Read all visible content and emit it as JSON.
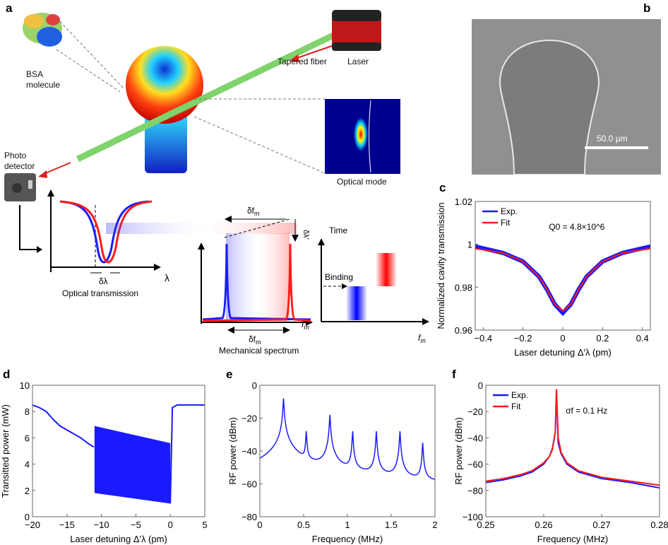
{
  "panel_labels": [
    "a",
    "b",
    "c",
    "d",
    "e",
    "f"
  ],
  "diagram": {
    "bsa_label_1": "BSA",
    "bsa_label_2": "molecule",
    "tapered_fiber": "Tapered fiber",
    "laser": "Laser",
    "photo_detector_1": "Photo",
    "photo_detector_2": "detector",
    "optical_mode": "Optical mode",
    "optical_transmission": "Optical transmission",
    "lambda": "λ",
    "delta_lambda": "δλ",
    "delta_lambda_prime": "δλ′",
    "delta_fm_top": "δf",
    "delta_fm_bottom": "δf",
    "fm_sub": "m",
    "fm_axis": "f",
    "mechanical_spectrum": "Mechanical spectrum",
    "time": "Time",
    "binding": "Binding",
    "colors": {
      "blue": "#1a1aff",
      "red": "#ff1a1a",
      "fiber": "#7ed36b"
    }
  },
  "sem": {
    "scale_bar": "50.0 µm"
  },
  "chart_data": [
    {
      "id": "c",
      "type": "line",
      "xlabel": "Laser detuning Δ′λ (pm)",
      "ylabel": "Normalized cavity transmission",
      "xlim": [
        -0.44,
        0.44
      ],
      "ylim": [
        0.96,
        1.02
      ],
      "xticks": [
        -0.4,
        -0.2,
        0,
        0.2,
        0.4
      ],
      "xtick_labels": [
        "−0.4",
        "−0.2",
        "0",
        "0.2",
        "0.4"
      ],
      "yticks": [
        0.96,
        0.98,
        1,
        1.02
      ],
      "ytick_labels": [
        "0.96",
        "0.98",
        "1",
        "1.02"
      ],
      "legend": "top-left",
      "annotation": "Q0 = 4.8×10^6",
      "series": [
        {
          "name": "Exp.",
          "color": "#1a1aff",
          "x": [
            -0.44,
            -0.3,
            -0.2,
            -0.12,
            -0.08,
            -0.04,
            0,
            0.04,
            0.08,
            0.12,
            0.2,
            0.3,
            0.44
          ],
          "y": [
            0.999,
            0.996,
            0.992,
            0.985,
            0.979,
            0.972,
            0.968,
            0.972,
            0.979,
            0.985,
            0.992,
            0.996,
            0.999
          ]
        },
        {
          "name": "Fit",
          "color": "#ff1a1a",
          "x": [
            -0.44,
            -0.3,
            -0.2,
            -0.12,
            -0.08,
            -0.04,
            0,
            0.04,
            0.08,
            0.12,
            0.2,
            0.3,
            0.44
          ],
          "y": [
            0.998,
            0.996,
            0.992,
            0.985,
            0.979,
            0.972,
            0.969,
            0.972,
            0.979,
            0.985,
            0.992,
            0.996,
            0.998
          ]
        }
      ]
    },
    {
      "id": "d",
      "type": "line",
      "xlabel": "Laser detuning Δ′λ (pm)",
      "ylabel": "Transitted power (mW)",
      "xlim": [
        -20,
        5
      ],
      "ylim": [
        0,
        10
      ],
      "xticks": [
        -20,
        -15,
        -10,
        -5,
        0,
        5
      ],
      "xtick_labels": [
        "−20",
        "−15",
        "−10",
        "−5",
        "0",
        "5"
      ],
      "yticks": [
        0,
        2,
        4,
        6,
        8,
        10
      ],
      "ytick_labels": [
        "0",
        "2",
        "4",
        "6",
        "8",
        "10"
      ],
      "series": [
        {
          "name": "",
          "color": "#1a1aff",
          "x": [
            -20,
            -19,
            -18,
            -17,
            -16,
            -15,
            -14,
            -13,
            -12,
            -11.1
          ],
          "y": [
            8.5,
            8.3,
            8.0,
            7.4,
            6.9,
            6.6,
            6.3,
            6.0,
            5.6,
            5.3
          ]
        },
        {
          "name": "",
          "color": "#1a1aff",
          "x": [
            0,
            0.3,
            1,
            5
          ],
          "y": [
            1.0,
            8.3,
            8.5,
            8.5
          ]
        }
      ],
      "band": {
        "color": "#1a1aff",
        "x": [
          -11,
          0
        ],
        "upper": [
          6.9,
          5.6
        ],
        "lower": [
          1.8,
          1.0
        ]
      }
    },
    {
      "id": "e",
      "type": "line",
      "xlabel": "Frequency (MHz)",
      "ylabel": "RF power (dBm)",
      "xlim": [
        0,
        2
      ],
      "ylim": [
        -80,
        0
      ],
      "xticks": [
        0,
        0.5,
        1,
        1.5,
        2
      ],
      "xtick_labels": [
        "0",
        "0.5",
        "1",
        "1.5",
        "2"
      ],
      "yticks": [
        -80,
        -60,
        -40,
        -20,
        0
      ],
      "ytick_labels": [
        "−80",
        "−60",
        "−40",
        "−20",
        "0"
      ],
      "baseline": {
        "x": [
          0,
          2
        ],
        "y": [
          -58,
          -65
        ]
      },
      "peaks": {
        "freq_mhz": [
          0.27,
          0.53,
          0.8,
          1.06,
          1.33,
          1.6,
          1.86
        ],
        "power_dbm": [
          -8,
          -28,
          -18,
          -28,
          -28,
          -28,
          -35
        ]
      },
      "color": "#1a1aff"
    },
    {
      "id": "f",
      "type": "line",
      "xlabel": "Frequency (MHz)",
      "ylabel": "RF power (dBm)",
      "xlim": [
        0.25,
        0.28
      ],
      "ylim": [
        -100,
        0
      ],
      "xticks": [
        0.25,
        0.26,
        0.27,
        0.28
      ],
      "xtick_labels": [
        "0.25",
        "0.26",
        "0.27",
        "0.28"
      ],
      "yticks": [
        -100,
        -80,
        -60,
        -40,
        -20,
        0
      ],
      "ytick_labels": [
        "−100",
        "−80",
        "−60",
        "−40",
        "−20",
        "0"
      ],
      "legend": "top-left",
      "annotation": "σf = 0.1 Hz",
      "series": [
        {
          "name": "Exp.",
          "color": "#1a1aff",
          "x": [
            0.25,
            0.253,
            0.256,
            0.258,
            0.26,
            0.261,
            0.2615,
            0.262,
            0.2622,
            0.2625,
            0.263,
            0.264,
            0.266,
            0.27,
            0.275,
            0.28
          ],
          "y": [
            -74,
            -72,
            -69,
            -66,
            -60,
            -54,
            -48,
            -36,
            -4,
            -44,
            -52,
            -60,
            -66,
            -71,
            -74,
            -78
          ]
        },
        {
          "name": "Fit",
          "color": "#ff1a1a",
          "x": [
            0.25,
            0.253,
            0.256,
            0.258,
            0.26,
            0.261,
            0.2615,
            0.262,
            0.2622,
            0.2625,
            0.263,
            0.264,
            0.266,
            0.27,
            0.275,
            0.28
          ],
          "y": [
            -73,
            -71,
            -68,
            -65,
            -59,
            -54,
            -49,
            -35,
            -3,
            -40,
            -51,
            -59,
            -65,
            -70,
            -73,
            -76
          ]
        }
      ]
    }
  ]
}
